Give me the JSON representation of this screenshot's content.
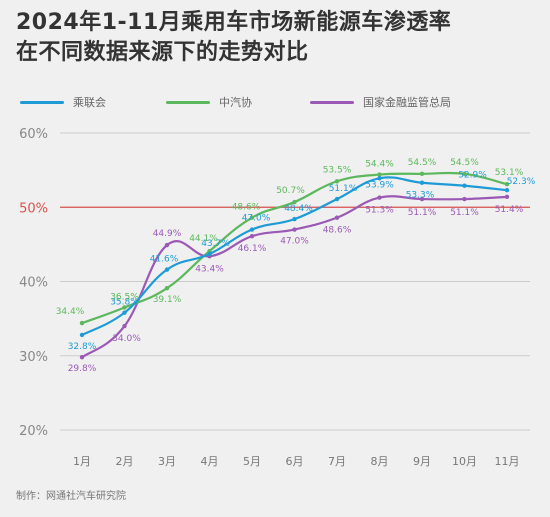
{
  "header": {
    "title_line1": "2024年1-11月乘用车市场新能源车渗透率",
    "title_line2": "在不同数据来源下的走势对比"
  },
  "source": "制作：网通社汽车研究院",
  "colors": {
    "background": "#f0f0f0",
    "grid": "#cccccc",
    "reference_line": "#d9534f",
    "reference_label": "#d9534f",
    "tick_label": "#888888"
  },
  "chart_data": {
    "type": "line",
    "title": "2024年1-11月乘用车市场新能源车渗透率在不同数据来源下的走势对比",
    "xlabel": "",
    "ylabel": "",
    "categories": [
      "1月",
      "2月",
      "3月",
      "4月",
      "5月",
      "6月",
      "7月",
      "8月",
      "9月",
      "10月",
      "11月"
    ],
    "ylim": [
      20,
      60
    ],
    "y_ticks": [
      20,
      30,
      40,
      50,
      60
    ],
    "y_tick_labels": [
      "20%",
      "30%",
      "40%",
      "50%",
      "60%"
    ],
    "reference_line": {
      "value": 50,
      "label": "50%"
    },
    "grid": true,
    "legend_position": "top",
    "series": [
      {
        "name": "乘联会",
        "color": "#1e9bd7",
        "values": [
          32.8,
          35.8,
          41.6,
          43.7,
          47.0,
          48.4,
          51.1,
          53.9,
          53.3,
          52.9,
          52.3
        ],
        "labels": [
          "32.8%",
          "35.8%",
          "41.6%",
          "43.7%",
          "47.0%",
          "48.4%",
          "51.1%",
          "53.9%",
          "53.3%",
          "52.9%",
          "52.3%"
        ]
      },
      {
        "name": "中汽协",
        "color": "#5cb85c",
        "values": [
          34.4,
          36.5,
          39.1,
          44.1,
          48.6,
          50.7,
          53.5,
          54.4,
          54.5,
          54.5,
          53.1
        ],
        "labels": [
          "34.4%",
          "36.5%",
          "39.1%",
          "44.1%",
          "48.6%",
          "50.7%",
          "53.5%",
          "54.4%",
          "54.5%",
          "54.5%",
          "53.1%"
        ]
      },
      {
        "name": "国家金融监管总局",
        "color": "#9b59b6",
        "values": [
          29.8,
          34.0,
          44.9,
          43.4,
          46.1,
          47.0,
          48.6,
          51.3,
          51.1,
          51.1,
          51.4
        ],
        "labels": [
          "29.8%",
          "34.0%",
          "44.9%",
          "43.4%",
          "46.1%",
          "47.0%",
          "48.6%",
          "51.3%",
          "51.1%",
          "51.1%",
          "51.4%"
        ]
      }
    ]
  }
}
